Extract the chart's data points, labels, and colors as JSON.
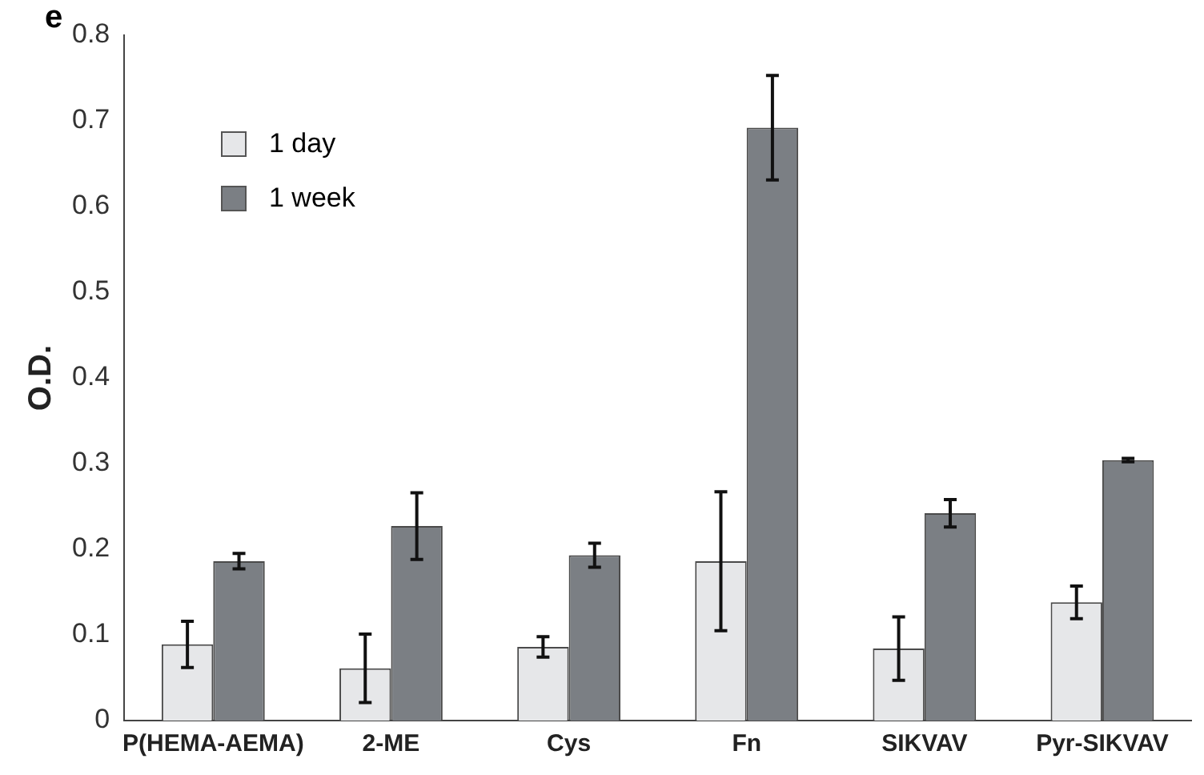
{
  "chart_data": {
    "type": "bar",
    "annotations": [
      "e"
    ],
    "ylabel": "O.D.",
    "categories": [
      "P(HEMA-AEMA)",
      "2-ME",
      "Cys",
      "Fn",
      "SIKVAV",
      "Pyr-SIKVAV"
    ],
    "series": [
      {
        "name": "1 day",
        "color": "#e6e7e9",
        "values": [
          0.089,
          0.061,
          0.086,
          0.186,
          0.084,
          0.138
        ],
        "errors": [
          0.027,
          0.04,
          0.012,
          0.081,
          0.037,
          0.019
        ]
      },
      {
        "name": "1 week",
        "color": "#7b7f84",
        "values": [
          0.186,
          0.227,
          0.193,
          0.692,
          0.242,
          0.304
        ],
        "errors": [
          0.009,
          0.039,
          0.014,
          0.061,
          0.016,
          0.002
        ]
      }
    ],
    "ylim": [
      0,
      0.8
    ],
    "yticks": [
      0,
      0.1,
      0.2,
      0.3,
      0.4,
      0.5,
      0.6,
      0.7,
      0.8
    ],
    "grid": false,
    "legend": "top left"
  }
}
